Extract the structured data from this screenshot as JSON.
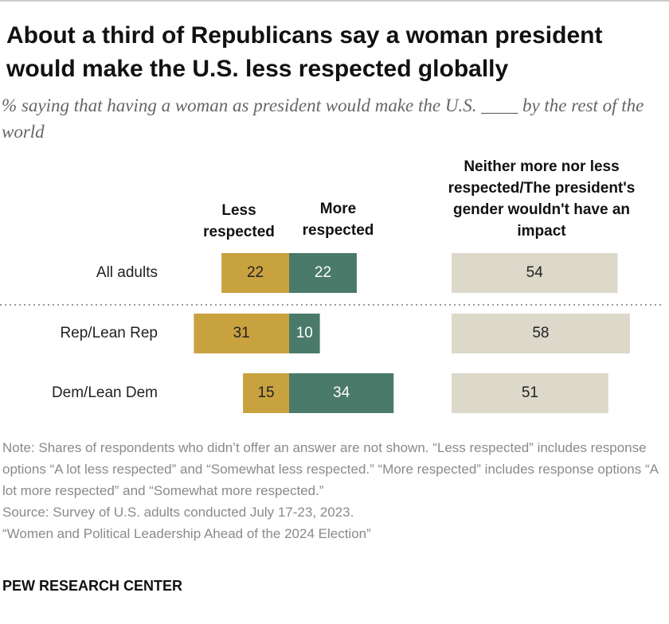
{
  "chart_data": {
    "type": "diverging_bar",
    "title": "About a third of Republicans say a woman president would make the U.S. less respected globally",
    "subtitle": "% saying that having a woman as president would make the U.S. ____ by the rest of the world",
    "categories": [
      "All adults",
      "Rep/Lean Rep",
      "Dem/Lean Dem"
    ],
    "series": [
      {
        "name": "Less respected",
        "color": "#c9a240",
        "values": [
          22,
          31,
          15
        ]
      },
      {
        "name": "More respected",
        "color": "#4a7a69",
        "values": [
          22,
          10,
          34
        ]
      },
      {
        "name": "Neither more nor less respected/The president's gender wouldn't have an impact",
        "color": "#dcd8ca",
        "values": [
          54,
          58,
          51
        ]
      }
    ],
    "note": "Note: Shares of respondents who didn’t offer an answer are not shown. “Less respected” includes response options “A lot less respected” and “Somewhat less respected.” “More respected” includes response options “A lot more respected” and “Somewhat more respected.”",
    "source": "Source: Survey of U.S. adults conducted July 17-23, 2023.",
    "report": "“Women and Political Leadership Ahead of the 2024 Election”",
    "logo": "PEW RESEARCH CENTER"
  }
}
